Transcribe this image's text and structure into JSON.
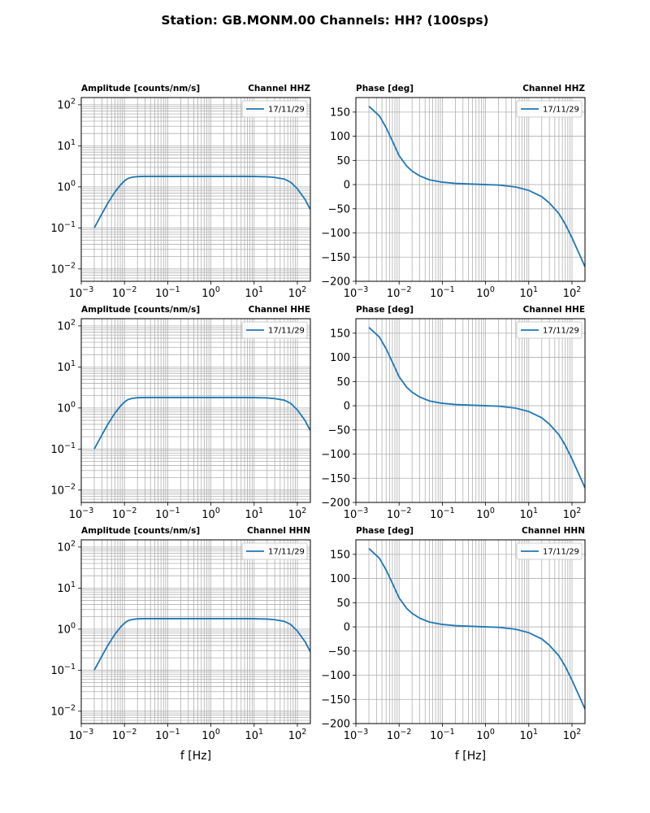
{
  "figure": {
    "title": "Station: GB.MONM.00 Channels: HH? (100sps)",
    "xlabel": "f [Hz]",
    "line_color": "#1f77b4",
    "grid_color": "#b0b0b0"
  },
  "chart_data": [
    {
      "type": "line",
      "kind": "amplitude",
      "channel": "HHZ",
      "title_left": "Amplitude [counts/nm/s]",
      "title_right": "Channel HHZ",
      "xscale": "log",
      "yscale": "log",
      "xlim": [
        0.001,
        200
      ],
      "ylim": [
        0.005,
        150
      ],
      "xticks": [
        "10^-3",
        "10^-2",
        "10^-1",
        "10^0",
        "10^1",
        "10^2"
      ],
      "yticks": [
        "10^-2",
        "10^-1",
        "10^0",
        "10^1",
        "10^2"
      ],
      "legend": [
        "17/11/29"
      ],
      "legend_position": "upper-right",
      "series": [
        {
          "name": "17/11/29",
          "x": [
            0.002,
            0.003,
            0.004,
            0.006,
            0.008,
            0.01,
            0.012,
            0.015,
            0.02,
            0.03,
            0.05,
            0.1,
            0.5,
            1,
            5,
            10,
            20,
            30,
            50,
            70,
            100,
            150,
            200
          ],
          "y": [
            0.1,
            0.22,
            0.38,
            0.75,
            1.1,
            1.4,
            1.6,
            1.72,
            1.78,
            1.8,
            1.8,
            1.8,
            1.8,
            1.8,
            1.8,
            1.79,
            1.76,
            1.7,
            1.55,
            1.3,
            0.9,
            0.5,
            0.28
          ]
        }
      ]
    },
    {
      "type": "line",
      "kind": "phase",
      "channel": "HHZ",
      "title_left": "Phase [deg]",
      "title_right": "Channel HHZ",
      "xscale": "log",
      "yscale": "linear",
      "xlim": [
        0.001,
        200
      ],
      "ylim": [
        -200,
        180
      ],
      "xticks": [
        "10^-3",
        "10^-2",
        "10^-1",
        "10^0",
        "10^1",
        "10^2"
      ],
      "yticks": [
        "150",
        "100",
        "50",
        "0",
        "−50",
        "−100",
        "−150",
        "−200"
      ],
      "legend": [
        "17/11/29"
      ],
      "legend_position": "upper-right",
      "series": [
        {
          "name": "17/11/29",
          "x": [
            0.002,
            0.0035,
            0.005,
            0.007,
            0.01,
            0.015,
            0.02,
            0.03,
            0.05,
            0.1,
            0.2,
            0.5,
            1,
            2,
            5,
            10,
            20,
            30,
            50,
            70,
            100,
            150,
            200
          ],
          "y": [
            162,
            142,
            118,
            90,
            60,
            38,
            28,
            18,
            10,
            5,
            2.5,
            1,
            0,
            -1,
            -5,
            -12,
            -25,
            -38,
            -60,
            -82,
            -110,
            -145,
            -170
          ]
        }
      ]
    },
    {
      "type": "line",
      "kind": "amplitude",
      "channel": "HHE",
      "title_left": "Amplitude [counts/nm/s]",
      "title_right": "Channel HHE",
      "xscale": "log",
      "yscale": "log",
      "xlim": [
        0.001,
        200
      ],
      "ylim": [
        0.005,
        150
      ],
      "xticks": [
        "10^-3",
        "10^-2",
        "10^-1",
        "10^0",
        "10^1",
        "10^2"
      ],
      "yticks": [
        "10^-2",
        "10^-1",
        "10^0",
        "10^1",
        "10^2"
      ],
      "legend": [
        "17/11/29"
      ],
      "legend_position": "upper-right",
      "series": [
        {
          "name": "17/11/29",
          "x": [
            0.002,
            0.003,
            0.004,
            0.006,
            0.008,
            0.01,
            0.012,
            0.015,
            0.02,
            0.03,
            0.05,
            0.1,
            0.5,
            1,
            5,
            10,
            20,
            30,
            50,
            70,
            100,
            150,
            200
          ],
          "y": [
            0.1,
            0.22,
            0.38,
            0.75,
            1.1,
            1.4,
            1.6,
            1.72,
            1.78,
            1.8,
            1.8,
            1.8,
            1.8,
            1.8,
            1.8,
            1.79,
            1.76,
            1.7,
            1.55,
            1.3,
            0.9,
            0.5,
            0.28
          ]
        }
      ]
    },
    {
      "type": "line",
      "kind": "phase",
      "channel": "HHE",
      "title_left": "Phase [deg]",
      "title_right": "Channel HHE",
      "xscale": "log",
      "yscale": "linear",
      "xlim": [
        0.001,
        200
      ],
      "ylim": [
        -200,
        180
      ],
      "xticks": [
        "10^-3",
        "10^-2",
        "10^-1",
        "10^0",
        "10^1",
        "10^2"
      ],
      "yticks": [
        "150",
        "100",
        "50",
        "0",
        "−50",
        "−100",
        "−150",
        "−200"
      ],
      "legend": [
        "17/11/29"
      ],
      "legend_position": "upper-right",
      "series": [
        {
          "name": "17/11/29",
          "x": [
            0.002,
            0.0035,
            0.005,
            0.007,
            0.01,
            0.015,
            0.02,
            0.03,
            0.05,
            0.1,
            0.2,
            0.5,
            1,
            2,
            5,
            10,
            20,
            30,
            50,
            70,
            100,
            150,
            200
          ],
          "y": [
            162,
            142,
            118,
            90,
            60,
            38,
            28,
            18,
            10,
            5,
            2.5,
            1,
            0,
            -1,
            -5,
            -12,
            -25,
            -38,
            -60,
            -82,
            -110,
            -145,
            -170
          ]
        }
      ]
    },
    {
      "type": "line",
      "kind": "amplitude",
      "channel": "HHN",
      "title_left": "Amplitude [counts/nm/s]",
      "title_right": "Channel HHN",
      "xscale": "log",
      "yscale": "log",
      "xlim": [
        0.001,
        200
      ],
      "ylim": [
        0.005,
        150
      ],
      "xticks": [
        "10^-3",
        "10^-2",
        "10^-1",
        "10^0",
        "10^1",
        "10^2"
      ],
      "yticks": [
        "10^-2",
        "10^-1",
        "10^0",
        "10^1",
        "10^2"
      ],
      "legend": [
        "17/11/29"
      ],
      "legend_position": "upper-right",
      "xlabel": "f [Hz]",
      "series": [
        {
          "name": "17/11/29",
          "x": [
            0.002,
            0.003,
            0.004,
            0.006,
            0.008,
            0.01,
            0.012,
            0.015,
            0.02,
            0.03,
            0.05,
            0.1,
            0.5,
            1,
            5,
            10,
            20,
            30,
            50,
            70,
            100,
            150,
            200
          ],
          "y": [
            0.1,
            0.22,
            0.38,
            0.75,
            1.1,
            1.4,
            1.6,
            1.72,
            1.78,
            1.8,
            1.8,
            1.8,
            1.8,
            1.8,
            1.8,
            1.79,
            1.76,
            1.7,
            1.55,
            1.3,
            0.9,
            0.5,
            0.28
          ]
        }
      ]
    },
    {
      "type": "line",
      "kind": "phase",
      "channel": "HHN",
      "title_left": "Phase [deg]",
      "title_right": "Channel HHN",
      "xscale": "log",
      "yscale": "linear",
      "xlim": [
        0.001,
        200
      ],
      "ylim": [
        -200,
        180
      ],
      "xticks": [
        "10^-3",
        "10^-2",
        "10^-1",
        "10^0",
        "10^1",
        "10^2"
      ],
      "yticks": [
        "150",
        "100",
        "50",
        "0",
        "−50",
        "−100",
        "−150",
        "−200"
      ],
      "legend": [
        "17/11/29"
      ],
      "legend_position": "upper-right",
      "xlabel": "f [Hz]",
      "series": [
        {
          "name": "17/11/29",
          "x": [
            0.002,
            0.0035,
            0.005,
            0.007,
            0.01,
            0.015,
            0.02,
            0.03,
            0.05,
            0.1,
            0.2,
            0.5,
            1,
            2,
            5,
            10,
            20,
            30,
            50,
            70,
            100,
            150,
            200
          ],
          "y": [
            162,
            142,
            118,
            90,
            60,
            38,
            28,
            18,
            10,
            5,
            2.5,
            1,
            0,
            -1,
            -5,
            -12,
            -25,
            -38,
            -60,
            -82,
            -110,
            -145,
            -170
          ]
        }
      ]
    }
  ]
}
